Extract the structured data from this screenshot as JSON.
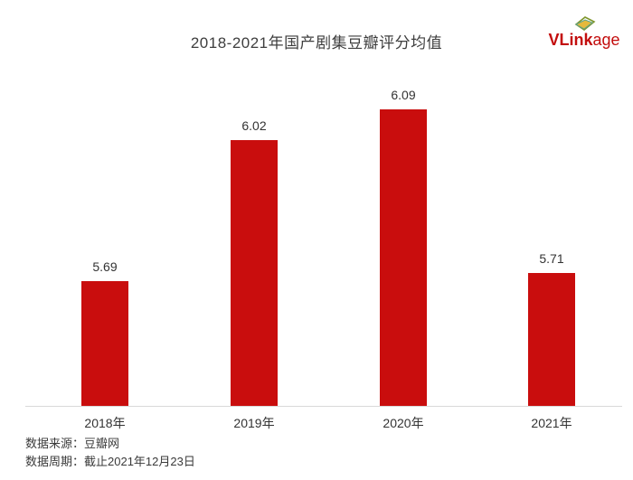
{
  "page": {
    "background": "#ffffff"
  },
  "header": {
    "title": "2018-2021年国产剧集豆瓣评分均值",
    "title_color": "#3e3e3e"
  },
  "logo": {
    "text_bold": "VLink",
    "text_light": "age",
    "color": "#c30d0d",
    "icon": "vlinkage-card-icon",
    "icon_outline_color": "#7f962c",
    "icon_fill_color": "#e5b93c"
  },
  "chart_data": {
    "type": "bar",
    "title": "2018-2021年国产剧集豆瓣评分均值",
    "categories": [
      "2018年",
      "2019年",
      "2020年",
      "2021年"
    ],
    "values": [
      5.69,
      6.02,
      6.09,
      5.71
    ],
    "value_labels": [
      "5.69",
      "6.02",
      "6.09",
      "5.71"
    ],
    "xlabel": "",
    "ylabel": "",
    "ylim": [
      5.4,
      6.2
    ],
    "grid": false,
    "legend": false,
    "bar_color": "#c90d0d",
    "axis_line_color": "#d9d9d9",
    "label_color": "#333333"
  },
  "footer": {
    "source": "数据来源：豆瓣网",
    "period": "数据周期：截止2021年12月23日",
    "color": "#3a3a3a"
  }
}
